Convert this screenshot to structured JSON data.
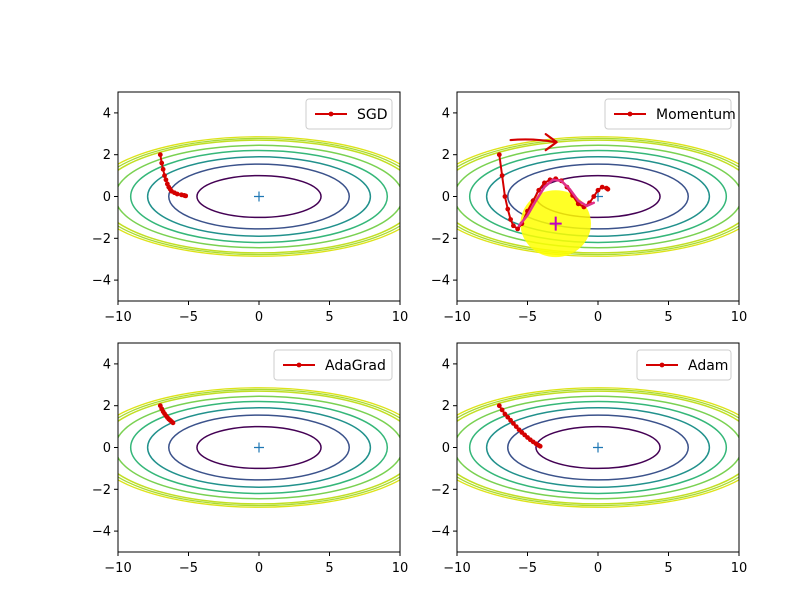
{
  "chart_data": [
    {
      "type": "line",
      "subplot": "top-left",
      "title": "",
      "xlabel": "",
      "ylabel": "",
      "xlim": [
        -10,
        10
      ],
      "ylim": [
        -5,
        5
      ],
      "xticks": [
        "−10",
        "−5",
        "0",
        "5",
        "10"
      ],
      "yticks": [
        "4",
        "2",
        "0",
        "−2",
        "−4"
      ],
      "xtick_values": [
        -10,
        -5,
        0,
        5,
        10
      ],
      "ytick_values": [
        4,
        2,
        0,
        -2,
        -4
      ],
      "legend": {
        "position": "top-right",
        "label": "SGD"
      },
      "minimum_marker": {
        "x": 0,
        "y": 0,
        "symbol": "+"
      },
      "contour_levels_semi_axes": [
        [
          4.4,
          1.0
        ],
        [
          6.4,
          1.55
        ],
        [
          7.9,
          1.9
        ],
        [
          9.1,
          2.2
        ],
        [
          10.2,
          2.45
        ],
        [
          11.3,
          2.7
        ]
      ],
      "series": [
        {
          "name": "SGD",
          "color": "#d40000",
          "x": [
            -7.0,
            -6.9,
            -6.8,
            -6.7,
            -6.6,
            -6.5,
            -6.4,
            -6.3,
            -6.2,
            -6.0,
            -5.8,
            -5.5,
            -5.3,
            -5.2
          ],
          "y": [
            2.0,
            1.6,
            1.3,
            1.0,
            0.8,
            0.6,
            0.45,
            0.35,
            0.25,
            0.18,
            0.12,
            0.08,
            0.05,
            0.03
          ]
        }
      ]
    },
    {
      "type": "line",
      "subplot": "top-right",
      "title": "",
      "xlabel": "",
      "ylabel": "",
      "xlim": [
        -10,
        10
      ],
      "ylim": [
        -5,
        5
      ],
      "xticks": [
        "−10",
        "−5",
        "0",
        "5",
        "10"
      ],
      "yticks": [
        "4",
        "2",
        "0",
        "−2",
        "−4"
      ],
      "xtick_values": [
        -10,
        -5,
        0,
        5,
        10
      ],
      "ytick_values": [
        4,
        2,
        0,
        -2,
        -4
      ],
      "legend": {
        "position": "top-right",
        "label": "Momentum"
      },
      "minimum_marker": {
        "x": 0,
        "y": 0,
        "symbol": "+"
      },
      "contour_levels_semi_axes": [
        [
          4.4,
          1.0
        ],
        [
          6.4,
          1.55
        ],
        [
          7.9,
          1.9
        ],
        [
          9.1,
          2.2
        ],
        [
          10.2,
          2.45
        ],
        [
          11.3,
          2.7
        ]
      ],
      "series": [
        {
          "name": "Momentum",
          "color": "#d40000",
          "x": [
            -7.0,
            -6.8,
            -6.6,
            -6.4,
            -6.2,
            -6.0,
            -5.7,
            -5.4,
            -5.0,
            -4.6,
            -4.2,
            -3.8,
            -3.4,
            -3.0,
            -2.6,
            -2.2,
            -1.8,
            -1.4,
            -1.0,
            -0.6,
            -0.3,
            0.0,
            0.3,
            0.6,
            0.7
          ],
          "y": [
            2.0,
            1.0,
            0.0,
            -0.6,
            -1.1,
            -1.4,
            -1.55,
            -1.3,
            -0.7,
            -0.2,
            0.3,
            0.65,
            0.8,
            0.85,
            0.75,
            0.45,
            0.05,
            -0.35,
            -0.5,
            -0.3,
            0.0,
            0.3,
            0.45,
            0.4,
            0.35
          ]
        }
      ],
      "annotations": [
        {
          "kind": "highlight-blob",
          "color": "#ffff00",
          "center": [
            -3.0,
            -1.3
          ],
          "radius": [
            2.5,
            1.6
          ]
        },
        {
          "kind": "drawn-arrow",
          "color": "#d40000",
          "from": [
            -6.2,
            2.7
          ],
          "to": [
            -3.0,
            2.6
          ]
        },
        {
          "kind": "drawn-wave",
          "color": "#e0308a"
        },
        {
          "kind": "plus-marker",
          "color": "#c000c0",
          "x": -3.0,
          "y": -1.3
        }
      ]
    },
    {
      "type": "line",
      "subplot": "bottom-left",
      "title": "",
      "xlabel": "",
      "ylabel": "",
      "xlim": [
        -10,
        10
      ],
      "ylim": [
        -5,
        5
      ],
      "xticks": [
        "−10",
        "−5",
        "0",
        "5",
        "10"
      ],
      "yticks": [
        "4",
        "2",
        "0",
        "−2",
        "−4"
      ],
      "xtick_values": [
        -10,
        -5,
        0,
        5,
        10
      ],
      "ytick_values": [
        4,
        2,
        0,
        -2,
        -4
      ],
      "legend": {
        "position": "top-right",
        "label": "AdaGrad"
      },
      "minimum_marker": {
        "x": 0,
        "y": 0,
        "symbol": "+"
      },
      "contour_levels_semi_axes": [
        [
          4.4,
          1.0
        ],
        [
          6.4,
          1.55
        ],
        [
          7.9,
          1.9
        ],
        [
          9.1,
          2.2
        ],
        [
          10.2,
          2.45
        ],
        [
          11.3,
          2.7
        ]
      ],
      "series": [
        {
          "name": "AdaGrad",
          "color": "#d40000",
          "x": [
            -7.0,
            -6.9,
            -6.8,
            -6.7,
            -6.6,
            -6.5,
            -6.4,
            -6.3,
            -6.2,
            -6.1
          ],
          "y": [
            2.0,
            1.85,
            1.72,
            1.62,
            1.52,
            1.44,
            1.36,
            1.3,
            1.24,
            1.18
          ]
        }
      ]
    },
    {
      "type": "line",
      "subplot": "bottom-right",
      "title": "",
      "xlabel": "",
      "ylabel": "",
      "xlim": [
        -10,
        10
      ],
      "ylim": [
        -5,
        5
      ],
      "xticks": [
        "−10",
        "−5",
        "0",
        "5",
        "10"
      ],
      "yticks": [
        "4",
        "2",
        "0",
        "−2",
        "−4"
      ],
      "xtick_values": [
        -10,
        -5,
        0,
        5,
        10
      ],
      "ytick_values": [
        4,
        2,
        0,
        -2,
        -4
      ],
      "legend": {
        "position": "top-right",
        "label": "Adam"
      },
      "minimum_marker": {
        "x": 0,
        "y": 0,
        "symbol": "+"
      },
      "contour_levels_semi_axes": [
        [
          4.4,
          1.0
        ],
        [
          6.4,
          1.55
        ],
        [
          7.9,
          1.9
        ],
        [
          9.1,
          2.2
        ],
        [
          10.2,
          2.45
        ],
        [
          11.3,
          2.7
        ]
      ],
      "series": [
        {
          "name": "Adam",
          "color": "#d40000",
          "x": [
            -7.0,
            -6.8,
            -6.6,
            -6.4,
            -6.2,
            -6.0,
            -5.8,
            -5.6,
            -5.4,
            -5.2,
            -5.0,
            -4.8,
            -4.6,
            -4.4,
            -4.2,
            -4.1
          ],
          "y": [
            2.0,
            1.8,
            1.6,
            1.45,
            1.3,
            1.15,
            1.0,
            0.85,
            0.72,
            0.6,
            0.48,
            0.37,
            0.27,
            0.18,
            0.1,
            0.06
          ]
        }
      ]
    }
  ],
  "colors": {
    "contours": [
      "#440154",
      "#3b528b",
      "#21918c",
      "#35b779",
      "#7ad151",
      "#c2df23"
    ],
    "path": "#d40000",
    "minimum_marker": "#1f77b4",
    "axis": "#000000"
  }
}
